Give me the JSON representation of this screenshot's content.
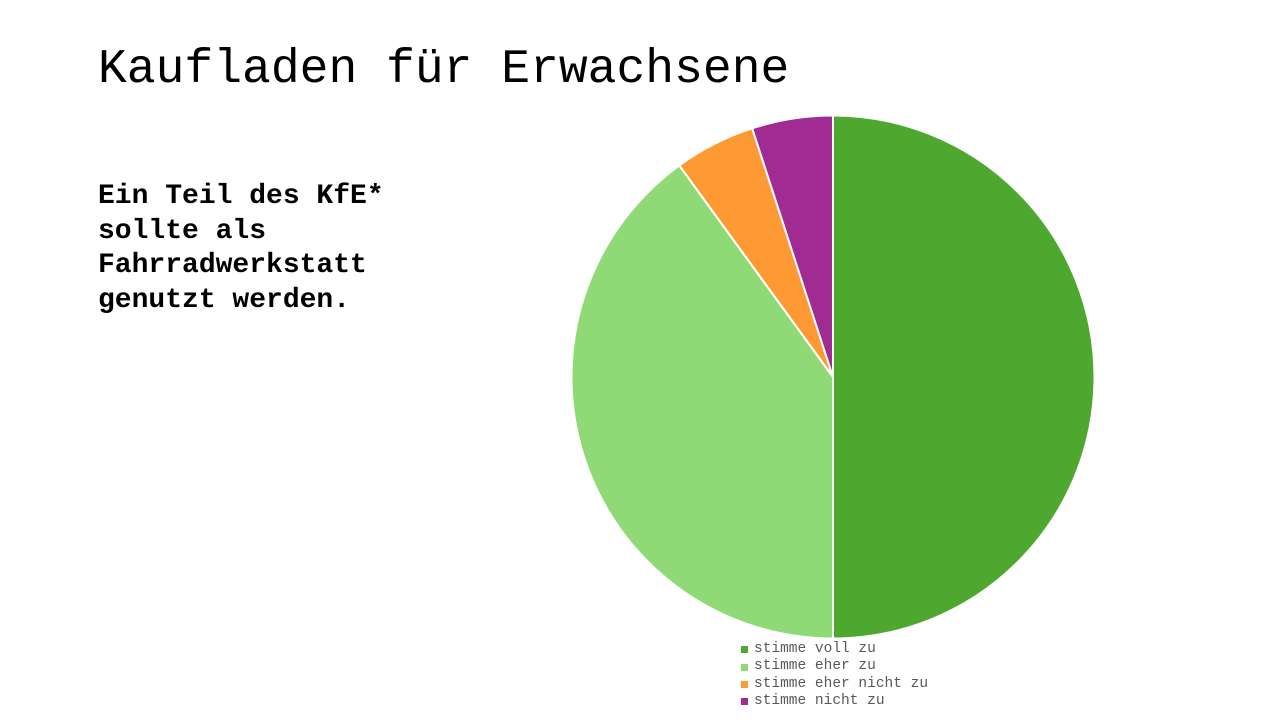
{
  "slide": {
    "title": "Kaufladen für Erwachsene",
    "statement": "Ein Teil des KfE*\nsollte als\nFahrradwerkstatt\ngenutzt werden."
  },
  "chart_data": {
    "type": "pie",
    "title": "",
    "slices": [
      {
        "label": "stimme voll zu",
        "value": 50,
        "color": "#4EA72E"
      },
      {
        "label": "stimme eher zu",
        "value": 40,
        "color": "#8FD976"
      },
      {
        "label": "stimme eher nicht zu",
        "value": 5,
        "color": "#FF9933"
      },
      {
        "label": "stimme nicht zu",
        "value": 5,
        "color": "#A02B93"
      }
    ],
    "start_angle": "12 o'clock",
    "direction": "clockwise",
    "legend_position": "bottom"
  }
}
